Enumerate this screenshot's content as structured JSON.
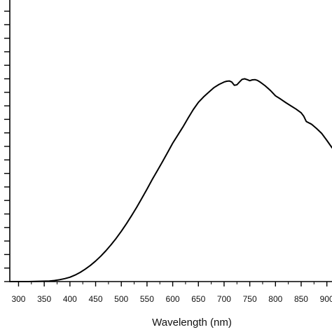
{
  "chart_data": {
    "type": "line",
    "title": "",
    "xlabel": "Wavelength (nm)",
    "ylabel": "",
    "xlim": [
      283,
      910
    ],
    "ylim": [
      0,
      1.0
    ],
    "grid": false,
    "legend": "none",
    "x_ticks": [
      300,
      350,
      400,
      450,
      500,
      550,
      600,
      650,
      700,
      750,
      800,
      850,
      900
    ],
    "x_tick_labels": [
      "300",
      "350",
      "400",
      "450",
      "500",
      "550",
      "600",
      "650",
      "700",
      "750",
      "800",
      "850",
      "900"
    ],
    "y_ticks": [
      0,
      0.05,
      0.1,
      0.15,
      0.2,
      0.25,
      0.3,
      0.35,
      0.4,
      0.45,
      0.5,
      0.55,
      0.6,
      0.65,
      0.7,
      0.75,
      0.8,
      0.85,
      0.9,
      0.95,
      1.0
    ],
    "line_color": "#000000",
    "series": [
      {
        "x": [
          283,
          300,
          320,
          340,
          360,
          370,
          380,
          390,
          400,
          410,
          420,
          430,
          440,
          450,
          460,
          470,
          480,
          490,
          500,
          510,
          520,
          530,
          540,
          550,
          560,
          570,
          580,
          590,
          600,
          610,
          620,
          630,
          640,
          650,
          660,
          670,
          680,
          690,
          700,
          705,
          710,
          715,
          720,
          725,
          730,
          735,
          740,
          745,
          750,
          755,
          760,
          765,
          770,
          780,
          790,
          800,
          810,
          820,
          830,
          840,
          850,
          855,
          860,
          870,
          880,
          890,
          900,
          910
        ],
        "y": [
          0.0,
          0.0,
          0.0,
          0.001,
          0.002,
          0.004,
          0.007,
          0.011,
          0.016,
          0.024,
          0.034,
          0.046,
          0.06,
          0.076,
          0.094,
          0.114,
          0.136,
          0.16,
          0.186,
          0.214,
          0.244,
          0.275,
          0.308,
          0.342,
          0.377,
          0.41,
          0.443,
          0.477,
          0.512,
          0.542,
          0.572,
          0.605,
          0.636,
          0.663,
          0.683,
          0.7,
          0.717,
          0.729,
          0.738,
          0.741,
          0.742,
          0.738,
          0.726,
          0.728,
          0.738,
          0.748,
          0.75,
          0.747,
          0.743,
          0.746,
          0.747,
          0.744,
          0.738,
          0.724,
          0.707,
          0.687,
          0.675,
          0.662,
          0.65,
          0.638,
          0.624,
          0.612,
          0.592,
          0.582,
          0.566,
          0.548,
          0.522,
          0.495
        ]
      }
    ]
  }
}
